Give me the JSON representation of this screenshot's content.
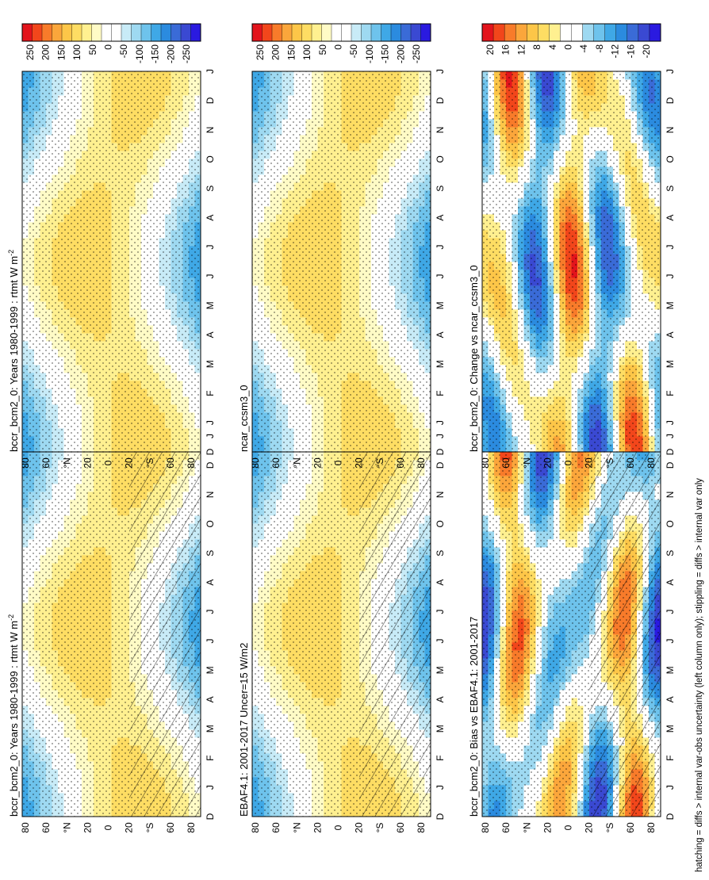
{
  "footer_note": "hatching = diffs > internal var-obs uncertainty (left column only); stippling = diffs > internal var only",
  "colors": {
    "abs_scale": [
      "#e3141c",
      "#f2461b",
      "#f87b2a",
      "#fba63b",
      "#fdc648",
      "#fedd63",
      "#fff090",
      "#fffbc6",
      "#ffffff",
      "#ffffff",
      "#c8ebf7",
      "#9ed9f1",
      "#6ec3ec",
      "#3fa8e6",
      "#2b8bdf",
      "#3a6bd7",
      "#3a49d2",
      "#2a1ae0"
    ],
    "diff_scale": [
      "#e3141c",
      "#f2461b",
      "#f87b2a",
      "#fba63b",
      "#fdc648",
      "#fedd63",
      "#fff090",
      "#ffffff",
      "#ffffff",
      "#9ed9f1",
      "#6ec3ec",
      "#3fa8e6",
      "#2b8bdf",
      "#3a6bd7",
      "#3a49d2",
      "#2a1ae0"
    ]
  },
  "chart_data": [
    {
      "type": "heatmap",
      "title": "bccr_bcm2_0: Years 1980-1999 : rtmt W m",
      "title_superscript": "-2",
      "x_ticks": [
        "D",
        "J",
        "F",
        "M",
        "A",
        "M",
        "J",
        "J",
        "A",
        "S",
        "O",
        "N",
        "D",
        "J"
      ],
      "y_ticks": [
        "80",
        "60",
        "°N",
        "20",
        "0",
        "20",
        "°S",
        "60",
        "80"
      ],
      "colorbar_labels": [
        "250",
        "200",
        "150",
        "100",
        "50",
        "0",
        "-50",
        "-100",
        "-150",
        "-200",
        "-250"
      ],
      "z_range": [
        -275,
        275
      ],
      "hatching": true,
      "stippling": true
    },
    {
      "type": "heatmap",
      "title": "bccr_bcm2_0: Years 1980-1999 : rtmt W m",
      "title_superscript": "-2",
      "x_ticks": [
        "D",
        "J",
        "F",
        "M",
        "A",
        "M",
        "J",
        "J",
        "A",
        "S",
        "O",
        "N",
        "D",
        "J"
      ],
      "y_ticks": [
        "80",
        "60",
        "°N",
        "20",
        "0",
        "20",
        "°S",
        "60",
        "80"
      ],
      "colorbar_labels": [
        "250",
        "200",
        "150",
        "100",
        "50",
        "0",
        "-50",
        "-100",
        "-150",
        "-200",
        "-250"
      ],
      "z_range": [
        -275,
        275
      ],
      "hatching": false,
      "stippling": true
    },
    {
      "type": "heatmap",
      "title": "EBAF4.1: 2001-2017 Uncer=15 W/m2",
      "x_ticks": [
        "D",
        "J",
        "F",
        "M",
        "A",
        "M",
        "J",
        "J",
        "A",
        "S",
        "O",
        "N",
        "D",
        "J"
      ],
      "y_ticks": [
        "80",
        "60",
        "°N",
        "20",
        "0",
        "20",
        "°S",
        "60",
        "80"
      ],
      "colorbar_labels": [
        "250",
        "200",
        "150",
        "100",
        "50",
        "0",
        "-50",
        "-100",
        "-150",
        "-200",
        "-250"
      ],
      "z_range": [
        -275,
        275
      ],
      "hatching": true,
      "stippling": true
    },
    {
      "type": "heatmap",
      "title": "ncar_ccsm3_0",
      "x_ticks": [
        "D",
        "J",
        "F",
        "M",
        "A",
        "M",
        "J",
        "J",
        "A",
        "S",
        "O",
        "N",
        "D",
        "J"
      ],
      "y_ticks": [
        "80",
        "60",
        "°N",
        "20",
        "0",
        "20",
        "°S",
        "60",
        "80"
      ],
      "colorbar_labels": [
        "250",
        "200",
        "150",
        "100",
        "50",
        "0",
        "-50",
        "-100",
        "-150",
        "-200",
        "-250"
      ],
      "z_range": [
        -275,
        275
      ],
      "hatching": false,
      "stippling": true
    },
    {
      "type": "heatmap",
      "title": "bccr_bcm2_0: Bias vs EBAF4.1: 2001-2017",
      "x_ticks": [
        "D",
        "J",
        "F",
        "M",
        "A",
        "M",
        "J",
        "J",
        "A",
        "S",
        "O",
        "N",
        "D",
        "J"
      ],
      "y_ticks": [
        "80",
        "60",
        "°N",
        "20",
        "0",
        "20",
        "°S",
        "60",
        "80"
      ],
      "colorbar_labels": [
        "20",
        "16",
        "12",
        "8",
        "4",
        "0",
        "-4",
        "-8",
        "-12",
        "-16",
        "-20"
      ],
      "z_range": [
        -22,
        22
      ],
      "hatching": true,
      "stippling": true
    },
    {
      "type": "heatmap",
      "title": "bccr_bcm2_0: Change vs ncar_ccsm3_0",
      "x_ticks": [
        "D",
        "J",
        "F",
        "M",
        "A",
        "M",
        "J",
        "J",
        "A",
        "S",
        "O",
        "N",
        "D",
        "J"
      ],
      "y_ticks": [
        "80",
        "60",
        "°N",
        "20",
        "0",
        "20",
        "°S",
        "60",
        "80"
      ],
      "colorbar_labels": [
        "20",
        "16",
        "12",
        "8",
        "4",
        "0",
        "-4",
        "-8",
        "-12",
        "-16",
        "-20"
      ],
      "z_range": [
        -22,
        22
      ],
      "hatching": false,
      "stippling": true
    }
  ]
}
